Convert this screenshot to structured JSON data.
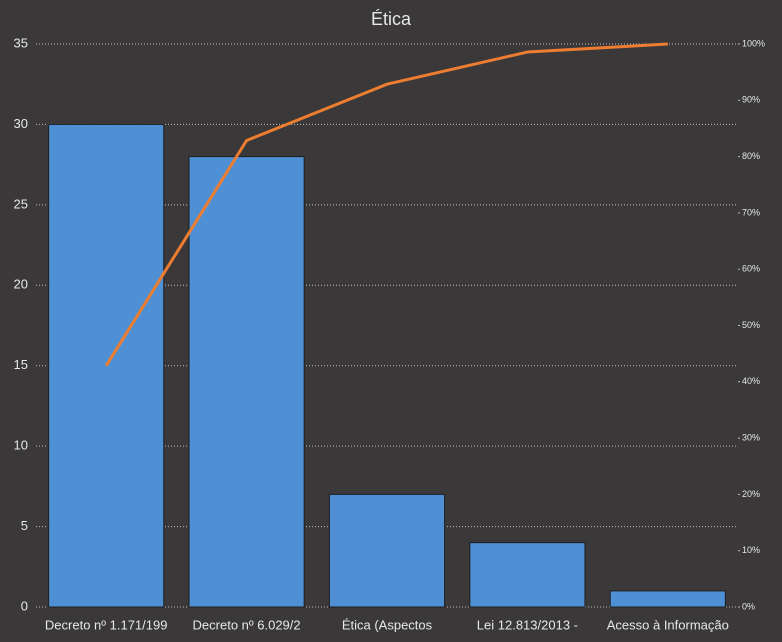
{
  "chart_data": {
    "type": "pareto",
    "title": "Ética",
    "categories": [
      "Decreto nº 1.171/199",
      "Decreto nº 6.029/2",
      "Ética (Aspectos",
      "Lei 12.813/2013 -",
      "Acesso à Informação"
    ],
    "values": [
      30,
      28,
      7,
      4,
      1
    ],
    "color": "#4f8fd4",
    "line": {
      "values": [
        42.86,
        82.86,
        92.86,
        98.57,
        100
      ],
      "color": "#ed7d31",
      "axis": "y2"
    },
    "ylim": [
      0,
      35
    ],
    "yticks": [
      0,
      5,
      10,
      15,
      20,
      25,
      30,
      35
    ],
    "y2lim": [
      0,
      100
    ],
    "y2ticks": [
      {
        "value": 0,
        "label": "0%"
      },
      {
        "value": 10,
        "label": "10%"
      },
      {
        "value": 20,
        "label": "20%"
      },
      {
        "value": 30,
        "label": "30%"
      },
      {
        "value": 40,
        "label": "40%"
      },
      {
        "value": 50,
        "label": "50%"
      },
      {
        "value": 60,
        "label": "60%"
      },
      {
        "value": 70,
        "label": "70%"
      },
      {
        "value": 80,
        "label": "80%"
      },
      {
        "value": 90,
        "label": "90%"
      },
      {
        "value": 100,
        "label": "100%"
      }
    ],
    "grid": true
  }
}
